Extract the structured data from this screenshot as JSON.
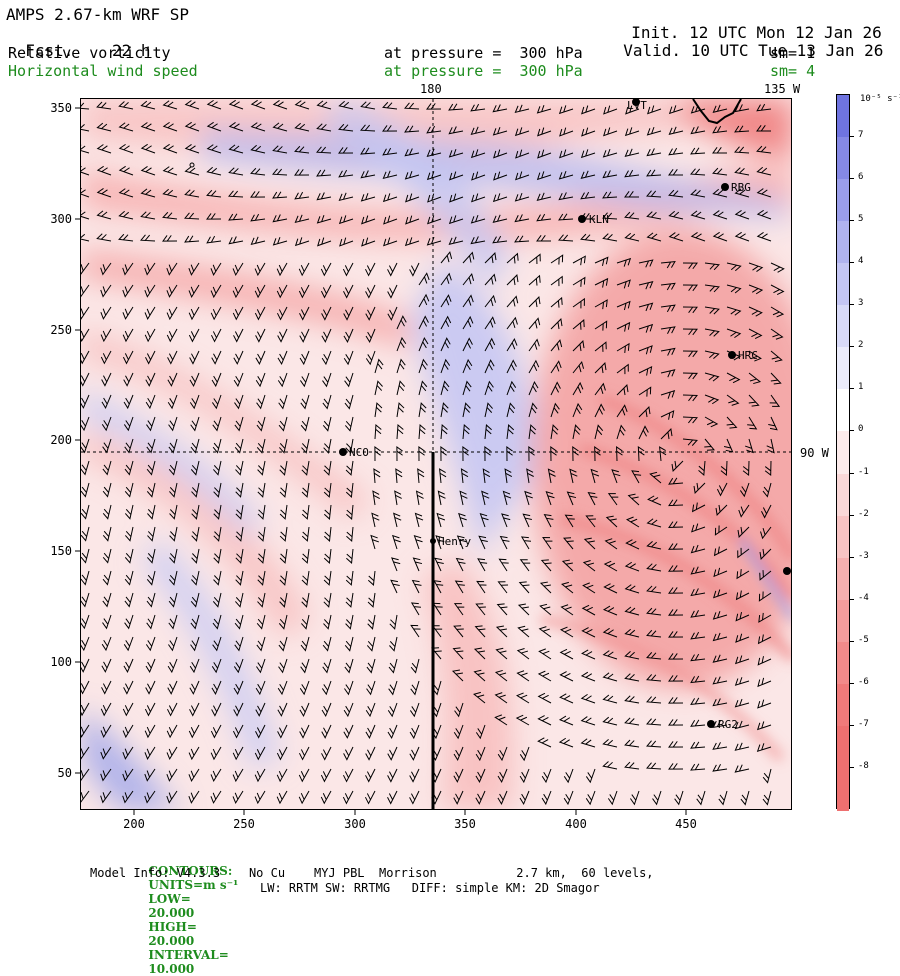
{
  "header": {
    "title_left": "AMPS 2.67-km WRF SP",
    "fcst_label": "Fcst.",
    "fcst_value": "22 h",
    "init_label": "Init.",
    "init_value": "12 UTC Mon 12 Jan 26",
    "valid_label": "Valid.",
    "valid_value": "10 UTC Tue 13 Jan 26",
    "field1_name": "Relative vorticity",
    "field1_pressure": "at pressure =  300 hPa",
    "field1_sm": "sm= 1",
    "field2_name": "Horizontal wind speed",
    "field2_pressure": "at pressure =  300 hPa",
    "field2_sm": "sm= 4"
  },
  "map": {
    "x_ticks": [
      "200",
      "250",
      "300",
      "350",
      "400",
      "450"
    ],
    "y_ticks": [
      "50",
      "100",
      "150",
      "200",
      "250",
      "300",
      "350"
    ],
    "lon_label_180": "180",
    "lon_label_135w": "135 W",
    "lon_label_90w": "90 W",
    "stations": [
      {
        "id": "LVT",
        "label": "LVT"
      },
      {
        "id": "RBG",
        "label": "RBG"
      },
      {
        "id": "KLN",
        "label": "KLN"
      },
      {
        "id": "HRC",
        "label": "HRC"
      },
      {
        "id": "NCO",
        "label": "NCO"
      },
      {
        "id": "Henry",
        "label": "Henry"
      },
      {
        "id": "RG2",
        "label": "RG2"
      }
    ],
    "colors": {
      "positive_vorticity": "#6f74e0",
      "negative_vorticity": "#f08080",
      "zero": "#ffffff",
      "barbs": "#000000",
      "frame": "#000000"
    }
  },
  "colorbar": {
    "units": "10⁻⁵ s⁻¹",
    "labels": [
      "7",
      "6",
      "5",
      "4",
      "3",
      "2",
      "1",
      "0",
      "-1",
      "-2",
      "-3",
      "-4",
      "-5",
      "-6",
      "-7",
      "-8"
    ],
    "colors": [
      "#6f74e0",
      "#8589e5",
      "#9a9eea",
      "#b0b3ef",
      "#c4c6f4",
      "#d8daf8",
      "#ebecfb",
      "#ffffff",
      "#fcebeb",
      "#fad8d8",
      "#f8c4c4",
      "#f6b0b0",
      "#f49c9c",
      "#f28a8a",
      "#f07a7a",
      "#ee7070"
    ]
  },
  "footer": {
    "contours_label": "CONTOURS:",
    "units_label": "UNITS=m s⁻¹",
    "low_label": "LOW=",
    "low_value": "20.000",
    "high_label": "HIGH=",
    "high_value": "20.000",
    "interval_label": "INTERVAL=",
    "interval_value": "10.000",
    "model_info": "Model Info: V4.3.3    No Cu    MYJ PBL  Morrison           2.7 km,  60 levels,",
    "physics_info": "LW: RRTM SW: RRTMG   DIFF: simple KM: 2D Smagor"
  }
}
